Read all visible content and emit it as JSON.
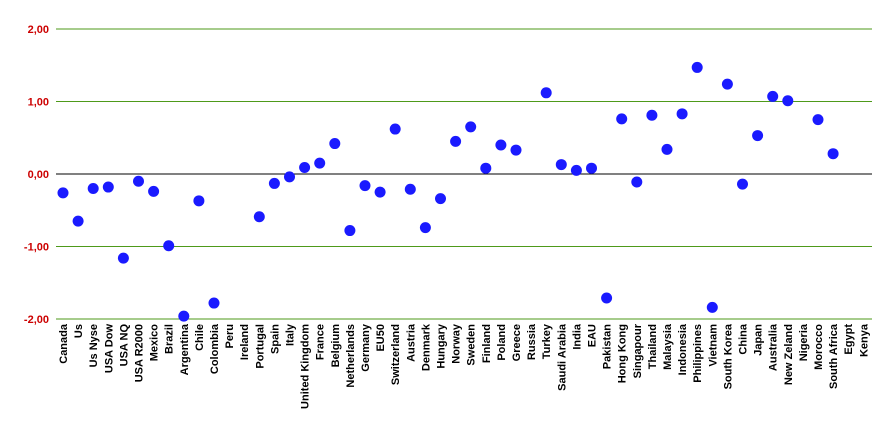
{
  "chart_data": {
    "type": "scatter",
    "title": "",
    "xlabel": "",
    "ylabel": "",
    "ylim": [
      -2,
      2
    ],
    "yticks": [
      2,
      1,
      0,
      -1,
      -2
    ],
    "ytick_labels": [
      "2,00",
      "1,00",
      "0,00",
      "-1,00",
      "-2,00"
    ],
    "grid": "horizontal",
    "colors": {
      "points": "#1a1aff",
      "grid": "#4e9a1a",
      "zero_line": "#000000",
      "tick_labels": "#cc0000",
      "axis": "#000000"
    },
    "categories": [
      "Canada",
      "Us",
      "Us Nyse",
      "USA Dow",
      "USA NQ",
      "USA R2000",
      "Mexico",
      "Brazil",
      "Argentina",
      "Chile",
      "Colombia",
      "Peru",
      "Ireland",
      "Portugal",
      "Spain",
      "Italy",
      "United Kingdom",
      "France",
      "Belgium",
      "Netherlands",
      "Germany",
      "EU50",
      "Switzerland",
      "Austria",
      "Denmark",
      "Hungary",
      "Norway",
      "Sweden",
      "Finland",
      "Poland",
      "Greece",
      "Russia",
      "Turkey",
      "Saudi Arabia",
      "India",
      "EAU",
      "Pakistan",
      "Hong Kong",
      "Singapour",
      "Thailand",
      "Malaysia",
      "Indonesia",
      "Philippines",
      "Vietnam",
      "South Korea",
      "China",
      "Japan",
      "Australia",
      "New Zeland",
      "Nigeria",
      "Morocco",
      "South Africa",
      "Egypt",
      "Kenya"
    ],
    "values": [
      -0.26,
      -0.65,
      -0.2,
      -0.18,
      -1.16,
      -0.1,
      -0.24,
      -0.99,
      -1.96,
      -0.37,
      -1.78,
      null,
      null,
      -0.59,
      -0.13,
      -0.04,
      0.09,
      0.15,
      0.42,
      -0.78,
      -0.16,
      -0.25,
      0.62,
      -0.21,
      -0.74,
      -0.34,
      0.45,
      0.65,
      0.08,
      0.4,
      0.33,
      null,
      1.12,
      0.13,
      0.05,
      0.08,
      -1.71,
      0.76,
      -0.11,
      0.81,
      0.34,
      0.83,
      1.47,
      -1.84,
      1.24,
      -0.14,
      0.53,
      1.07,
      1.01,
      null,
      0.75,
      0.28,
      null,
      null
    ]
  }
}
